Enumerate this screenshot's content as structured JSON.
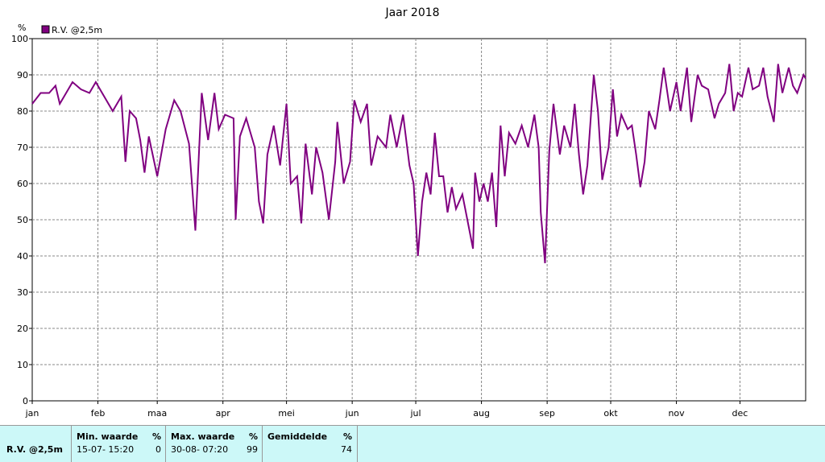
{
  "chart_data": {
    "type": "line",
    "title": "Jaar 2018",
    "y_unit": "%",
    "x": [
      0,
      4,
      8,
      11,
      13,
      19,
      23,
      27,
      30,
      34,
      38,
      42,
      44,
      46,
      49,
      51,
      53,
      55,
      59,
      63,
      67,
      70,
      74,
      77,
      80,
      83,
      86,
      88,
      91,
      95,
      96,
      98,
      101,
      105,
      107,
      109,
      111,
      114,
      117,
      120,
      122,
      125,
      127,
      129,
      132,
      134,
      137,
      140,
      143,
      144,
      147,
      150,
      152,
      155,
      158,
      160,
      163,
      167,
      169,
      172,
      175,
      178,
      180,
      182,
      184,
      186,
      188,
      190,
      192,
      194,
      196,
      198,
      200,
      203,
      205,
      208,
      209,
      211,
      213,
      215,
      217,
      219,
      221,
      223,
      225,
      228,
      231,
      234,
      237,
      239,
      240,
      242,
      244,
      246,
      249,
      251,
      254,
      256,
      258,
      260,
      262,
      265,
      267,
      269,
      272,
      274,
      276,
      278,
      281,
      283,
      285,
      287,
      289,
      291,
      294,
      296,
      298,
      301,
      304,
      306,
      309,
      311,
      314,
      316,
      319,
      322,
      324,
      327,
      329,
      331,
      333,
      335,
      338,
      340,
      343,
      345,
      347,
      350,
      352,
      354,
      357,
      359,
      361,
      364,
      365
    ],
    "series": [
      {
        "name": "R.V. @2,5m",
        "color": "#800080",
        "values": [
          82,
          85,
          85,
          87,
          82,
          88,
          86,
          85,
          88,
          84,
          80,
          84,
          66,
          80,
          78,
          72,
          63,
          73,
          62,
          75,
          83,
          80,
          71,
          47,
          85,
          72,
          85,
          75,
          79,
          78,
          50,
          73,
          78,
          70,
          55,
          49,
          68,
          76,
          65,
          82,
          60,
          62,
          49,
          71,
          57,
          70,
          63,
          50,
          66,
          77,
          60,
          66,
          83,
          77,
          82,
          65,
          73,
          70,
          79,
          70,
          79,
          65,
          60,
          40,
          55,
          63,
          57,
          74,
          62,
          62,
          52,
          59,
          53,
          57,
          51,
          42,
          63,
          55,
          60,
          55,
          63,
          48,
          76,
          62,
          74,
          71,
          76,
          70,
          79,
          70,
          52,
          38,
          69,
          82,
          68,
          76,
          70,
          82,
          68,
          57,
          65,
          90,
          80,
          61,
          70,
          86,
          73,
          79,
          75,
          76,
          68,
          59,
          66,
          80,
          75,
          83,
          92,
          80,
          88,
          80,
          92,
          77,
          90,
          87,
          86,
          78,
          82,
          85,
          93,
          80,
          85,
          84,
          92,
          86,
          87,
          92,
          84,
          77,
          93,
          85,
          92,
          87,
          85,
          90,
          89
        ]
      }
    ],
    "xlim": [
      0,
      365
    ],
    "xticks": [
      {
        "value": 0,
        "label": "jan"
      },
      {
        "value": 31,
        "label": "feb"
      },
      {
        "value": 59,
        "label": "maa"
      },
      {
        "value": 90,
        "label": "apr"
      },
      {
        "value": 120,
        "label": "mei"
      },
      {
        "value": 151,
        "label": "jun"
      },
      {
        "value": 181,
        "label": "jul"
      },
      {
        "value": 212,
        "label": "aug"
      },
      {
        "value": 243,
        "label": "sep"
      },
      {
        "value": 273,
        "label": "okt"
      },
      {
        "value": 304,
        "label": "nov"
      },
      {
        "value": 334,
        "label": "dec"
      }
    ],
    "ylim": [
      0,
      100
    ],
    "yticks": [
      0,
      10,
      20,
      30,
      40,
      50,
      60,
      70,
      80,
      90,
      100
    ],
    "grid": true
  },
  "table": {
    "row_label": "R.V. @2,5m",
    "columns": [
      {
        "header": "Min. waarde",
        "unit": "%",
        "time": "15-07- 15:20",
        "value": "0"
      },
      {
        "header": "Max. waarde",
        "unit": "%",
        "time": "30-08- 07:20",
        "value": "99"
      },
      {
        "header": "Gemiddelde",
        "unit": "%",
        "time": "",
        "value": "74"
      }
    ]
  }
}
